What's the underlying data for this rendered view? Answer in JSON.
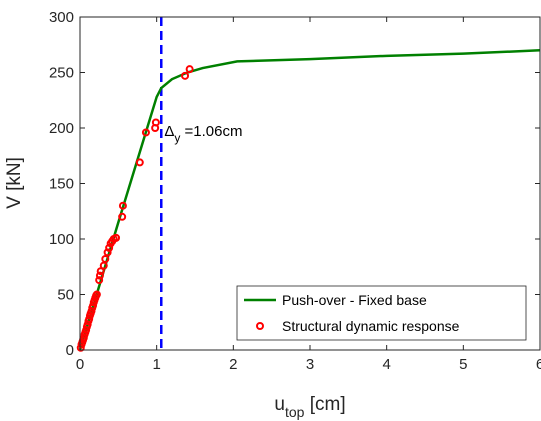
{
  "chart_data": {
    "type": "line",
    "xlabel": "u",
    "xlabel_sub": "top",
    "xlabel_unit": " [cm]",
    "ylabel": "V [kN]",
    "xlim": [
      0,
      6
    ],
    "ylim": [
      0,
      300
    ],
    "xticks": [
      0,
      1,
      2,
      3,
      4,
      5,
      6
    ],
    "yticks": [
      0,
      50,
      100,
      150,
      200,
      250,
      300
    ],
    "grid": false,
    "legend_position": "bottom-right",
    "series": [
      {
        "name": "Push-over - Fixed base",
        "style": "line",
        "color": "#008000",
        "x": [
          0,
          0.5,
          1.0,
          1.06,
          1.2,
          1.4,
          1.6,
          2.05,
          3.0,
          4.0,
          5.0,
          6.0
        ],
        "y": [
          0,
          115,
          228,
          236,
          244,
          250,
          254,
          260,
          262,
          265,
          267,
          270
        ]
      },
      {
        "name": "Structural dynamic response",
        "style": "markers",
        "color": "#ff0000",
        "x": [
          0.01,
          0.02,
          0.03,
          0.04,
          0.05,
          0.06,
          0.07,
          0.08,
          0.09,
          0.1,
          0.11,
          0.12,
          0.13,
          0.14,
          0.15,
          0.16,
          0.17,
          0.18,
          0.19,
          0.2,
          0.21,
          0.22,
          0.25,
          0.26,
          0.27,
          0.31,
          0.33,
          0.36,
          0.38,
          0.4,
          0.42,
          0.44,
          0.47,
          0.55,
          0.56,
          0.78,
          0.86,
          0.98,
          0.99,
          1.37,
          1.43
        ],
        "y": [
          2,
          5,
          7,
          9,
          11,
          14,
          16,
          18,
          21,
          23,
          26,
          28,
          31,
          33,
          35,
          38,
          40,
          43,
          45,
          47,
          49,
          50,
          63,
          67,
          71,
          76,
          82,
          88,
          92,
          96,
          98,
          100,
          101,
          120,
          130,
          169,
          196,
          200,
          205,
          247,
          253
        ]
      }
    ],
    "vline": {
      "x": 1.06,
      "color": "#0000ff",
      "style": "dashed"
    },
    "annotation": {
      "symbol": "Δ",
      "sub": "y",
      "text": " =1.06cm",
      "x": 1.1,
      "y": 200
    }
  }
}
